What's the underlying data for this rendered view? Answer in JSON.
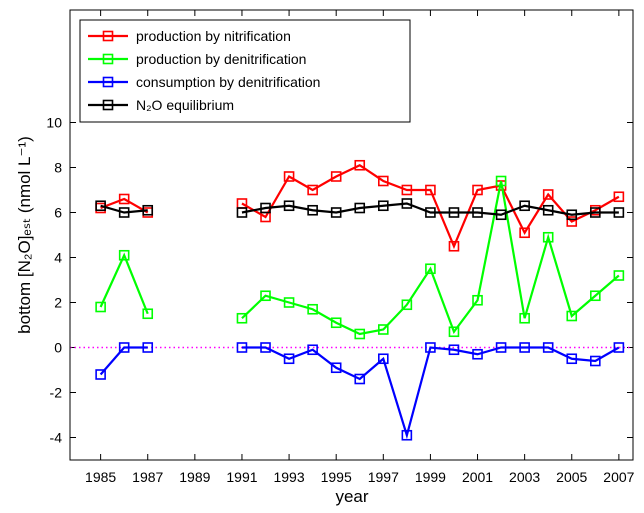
{
  "chart_data": {
    "type": "line",
    "xlabel": "year",
    "ylabel": "bottom [N₂O]ₑₛₜ (nmol L⁻¹)",
    "x": [
      1985,
      1986,
      1987,
      1988,
      1989,
      1990,
      1991,
      1992,
      1993,
      1994,
      1995,
      1996,
      1997,
      1998,
      1999,
      2000,
      2001,
      2002,
      2003,
      2004,
      2005,
      2006,
      2007
    ],
    "series": [
      {
        "name": "production by nitrification",
        "color": "#ff0000",
        "values": [
          6.2,
          6.6,
          6.0,
          null,
          null,
          null,
          6.4,
          5.8,
          7.6,
          7.0,
          7.6,
          8.1,
          7.4,
          7.0,
          7.0,
          4.5,
          7.0,
          7.2,
          5.1,
          6.8,
          5.6,
          6.1,
          6.7
        ]
      },
      {
        "name": "production by denitrification",
        "color": "#00ff00",
        "values": [
          1.8,
          4.1,
          1.5,
          null,
          null,
          null,
          1.3,
          2.3,
          2.0,
          1.7,
          1.1,
          0.6,
          0.8,
          1.9,
          3.5,
          0.7,
          2.1,
          7.4,
          1.3,
          4.9,
          1.4,
          2.3,
          3.2
        ]
      },
      {
        "name": "consumption by denitrification",
        "color": "#0000ff",
        "values": [
          -1.2,
          0.0,
          0.0,
          null,
          null,
          null,
          0.0,
          0.0,
          -0.5,
          -0.1,
          -0.9,
          -1.4,
          -0.5,
          -3.9,
          0.0,
          -0.1,
          -0.3,
          0.0,
          0.0,
          0.0,
          -0.5,
          -0.6,
          0.0
        ]
      },
      {
        "name": "N₂O equilibrium",
        "color": "#000000",
        "values": [
          6.3,
          6.0,
          6.1,
          null,
          null,
          null,
          6.0,
          6.2,
          6.3,
          6.1,
          6.0,
          6.2,
          6.3,
          6.4,
          6.0,
          6.0,
          6.0,
          5.9,
          6.3,
          6.1,
          5.9,
          6.0,
          6.0
        ]
      }
    ],
    "xlim": [
      1983.7,
      2007.6
    ],
    "xticks": [
      1985,
      1987,
      1989,
      1991,
      1993,
      1995,
      1997,
      1999,
      2001,
      2003,
      2005,
      2007
    ],
    "ylim": [
      -5,
      15
    ],
    "yticks": [
      -4,
      -2,
      0,
      2,
      4,
      6,
      8,
      10
    ],
    "reference_line": {
      "y": 0,
      "color": "#ff00ff"
    },
    "legend": "upper left",
    "grid": false
  }
}
